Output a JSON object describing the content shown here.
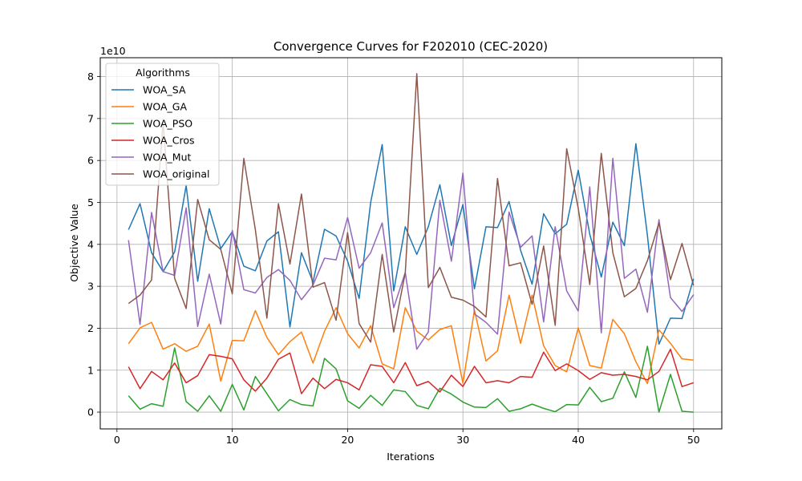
{
  "chart_data": {
    "type": "line",
    "title": "Convergence Curves for F202010 (CEC-2020)",
    "xlabel": "Iterations",
    "ylabel": "Objective Value",
    "offset_text": "1e10",
    "xlim": [
      -1.45,
      52.45
    ],
    "ylim": [
      -0.4,
      8.45
    ],
    "xticks": [
      0,
      10,
      20,
      30,
      40,
      50
    ],
    "yticks": [
      0,
      1,
      2,
      3,
      4,
      5,
      6,
      7,
      8
    ],
    "grid": true,
    "legend": {
      "title": "Algorithms",
      "position": "upper-left"
    },
    "x": [
      1,
      2,
      3,
      4,
      5,
      6,
      7,
      8,
      9,
      10,
      11,
      12,
      13,
      14,
      15,
      16,
      17,
      18,
      19,
      20,
      21,
      22,
      23,
      24,
      25,
      26,
      27,
      28,
      29,
      30,
      31,
      32,
      33,
      34,
      35,
      36,
      37,
      38,
      39,
      40,
      41,
      42,
      43,
      44,
      45,
      46,
      47,
      48,
      49,
      50
    ],
    "series": [
      {
        "name": "WOA_SA",
        "color": "#1f77b4",
        "values": [
          4.35,
          4.97,
          3.8,
          3.35,
          3.82,
          5.4,
          3.12,
          4.85,
          3.9,
          4.3,
          3.48,
          3.37,
          4.08,
          4.3,
          2.03,
          3.8,
          3.1,
          4.36,
          4.2,
          3.6,
          2.71,
          5.0,
          6.38,
          2.89,
          4.42,
          3.76,
          4.42,
          5.42,
          3.97,
          4.95,
          2.94,
          4.42,
          4.4,
          5.02,
          3.86,
          3.05,
          4.73,
          4.25,
          4.48,
          5.77,
          4.24,
          3.22,
          4.53,
          3.97,
          6.4,
          4.21,
          1.62,
          2.24,
          2.23,
          3.18
        ]
      },
      {
        "name": "WOA_GA",
        "color": "#ff7f0e",
        "values": [
          1.63,
          2.01,
          2.14,
          1.5,
          1.63,
          1.45,
          1.57,
          2.1,
          0.74,
          1.71,
          1.7,
          2.42,
          1.78,
          1.37,
          1.68,
          1.91,
          1.17,
          1.93,
          2.49,
          1.87,
          1.53,
          2.06,
          1.15,
          1.03,
          2.49,
          1.93,
          1.72,
          1.97,
          2.06,
          0.69,
          2.43,
          1.22,
          1.46,
          2.79,
          1.64,
          2.79,
          1.58,
          1.11,
          0.96,
          2.01,
          1.11,
          1.05,
          2.21,
          1.87,
          1.2,
          0.68,
          1.96,
          1.64,
          1.27,
          1.24
        ]
      },
      {
        "name": "WOA_PSO",
        "color": "#2ca02c",
        "values": [
          0.39,
          0.07,
          0.2,
          0.14,
          1.53,
          0.25,
          0.02,
          0.39,
          0.02,
          0.66,
          0.05,
          0.85,
          0.44,
          0.03,
          0.3,
          0.18,
          0.15,
          1.28,
          1.03,
          0.27,
          0.09,
          0.4,
          0.16,
          0.53,
          0.49,
          0.16,
          0.08,
          0.57,
          0.43,
          0.24,
          0.12,
          0.11,
          0.32,
          0.02,
          0.08,
          0.19,
          0.09,
          0.01,
          0.18,
          0.17,
          0.59,
          0.25,
          0.33,
          0.96,
          0.35,
          1.57,
          0.0,
          0.9,
          0.02,
          0.0
        ]
      },
      {
        "name": "WOA_Cros",
        "color": "#d62728",
        "values": [
          1.08,
          0.56,
          0.97,
          0.77,
          1.17,
          0.7,
          0.87,
          1.37,
          1.33,
          1.27,
          0.77,
          0.5,
          0.81,
          1.26,
          1.41,
          0.44,
          0.81,
          0.56,
          0.78,
          0.7,
          0.53,
          1.13,
          1.09,
          0.7,
          1.18,
          0.63,
          0.73,
          0.48,
          0.88,
          0.61,
          1.09,
          0.7,
          0.75,
          0.7,
          0.85,
          0.83,
          1.43,
          0.99,
          1.15,
          0.99,
          0.78,
          0.94,
          0.88,
          0.9,
          0.85,
          0.77,
          0.97,
          1.5,
          0.61,
          0.7
        ]
      },
      {
        "name": "WOA_Mut",
        "color": "#9467bd",
        "values": [
          4.1,
          2.09,
          4.76,
          3.35,
          3.26,
          4.87,
          2.04,
          3.29,
          2.1,
          4.33,
          2.92,
          2.84,
          3.21,
          3.4,
          3.14,
          2.68,
          3.03,
          3.67,
          3.63,
          4.64,
          3.43,
          3.8,
          4.51,
          2.49,
          3.33,
          1.5,
          1.91,
          5.05,
          3.6,
          5.7,
          2.34,
          2.14,
          1.86,
          4.77,
          3.93,
          4.2,
          2.15,
          4.42,
          2.89,
          2.41,
          5.37,
          1.89,
          6.05,
          3.19,
          3.41,
          2.38,
          4.59,
          2.73,
          2.4,
          2.8
        ]
      },
      {
        "name": "WOA_original",
        "color": "#8c564b",
        "values": [
          2.59,
          2.79,
          3.15,
          6.92,
          3.19,
          2.47,
          5.07,
          4.11,
          3.88,
          2.82,
          6.05,
          4.35,
          2.24,
          4.97,
          3.53,
          5.2,
          2.98,
          3.09,
          2.19,
          4.28,
          2.11,
          1.67,
          3.76,
          1.91,
          3.32,
          8.07,
          2.97,
          3.45,
          2.74,
          2.67,
          2.52,
          2.27,
          5.57,
          3.49,
          3.56,
          2.57,
          3.96,
          2.07,
          6.28,
          4.86,
          3.04,
          6.17,
          3.8,
          2.75,
          2.95,
          3.61,
          4.51,
          3.16,
          4.02,
          3.02
        ]
      }
    ]
  }
}
